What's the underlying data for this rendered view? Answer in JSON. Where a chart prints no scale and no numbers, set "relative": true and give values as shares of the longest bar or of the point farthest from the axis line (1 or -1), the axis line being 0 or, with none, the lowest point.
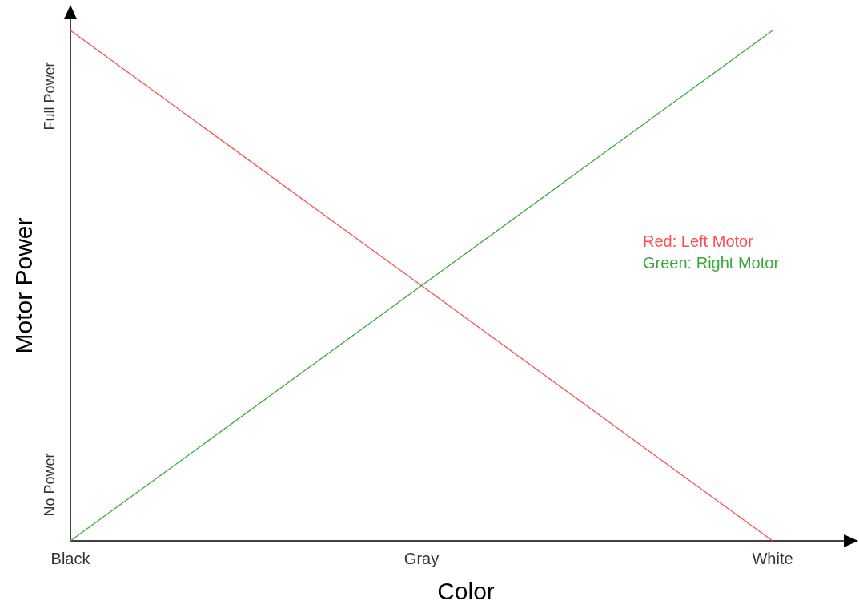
{
  "chart_data": {
    "type": "line",
    "xlabel": "Color",
    "ylabel": "Motor Power",
    "categories": [
      "Black",
      "Gray",
      "White"
    ],
    "relative": true,
    "annotations": [
      "No Power",
      "Full Power"
    ],
    "series": [
      {
        "name": "Red: Left Motor",
        "color": "#ff4d4d",
        "values": [
          1,
          0.5,
          0
        ]
      },
      {
        "name": "Green: Right Motor",
        "color": "#3aa83a",
        "values": [
          0,
          0.5,
          1
        ]
      }
    ],
    "legend": "right",
    "grid": false,
    "marker": "none",
    "line_style": "solid"
  }
}
